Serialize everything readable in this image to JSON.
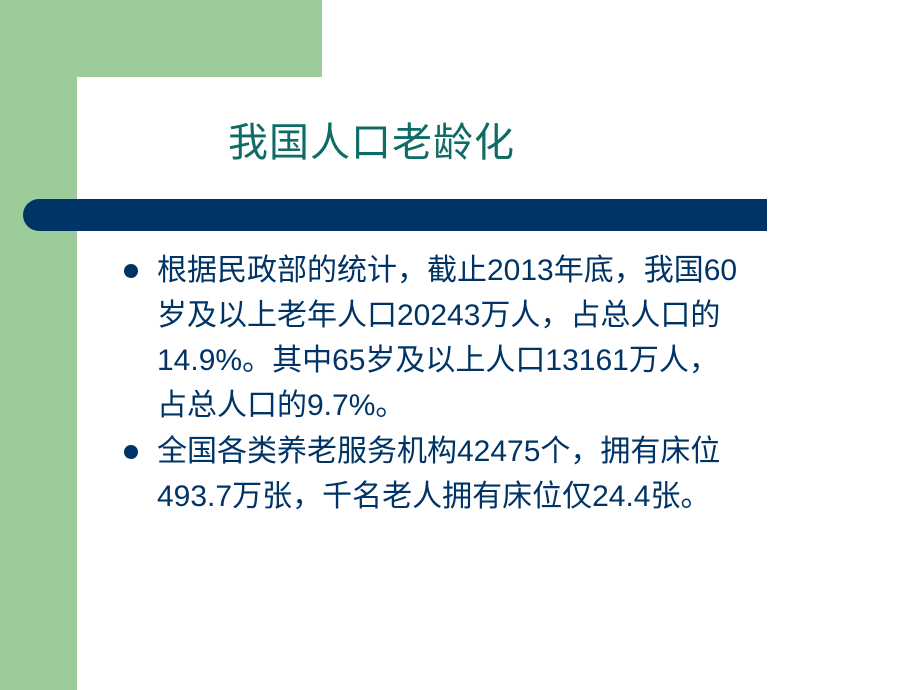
{
  "slide": {
    "title": "我国人口老龄化",
    "colors": {
      "accent_green": "#9ccc99",
      "bar": "#003366",
      "title": "#0f6b66",
      "text": "#003366"
    },
    "bullets": [
      {
        "lines": [
          "根据民政部的统计，截止2013年底，我国60",
          "岁及以上老年人口20243万人，占总人口的",
          "14.9%。其中65岁及以上人口13161万人，",
          " 占总人口的9.7%。"
        ]
      },
      {
        "lines": [
          "全国各类养老服务机构42475个，拥有床位",
          "493.7万张，千名老人拥有床位仅24.4张。"
        ]
      }
    ]
  }
}
